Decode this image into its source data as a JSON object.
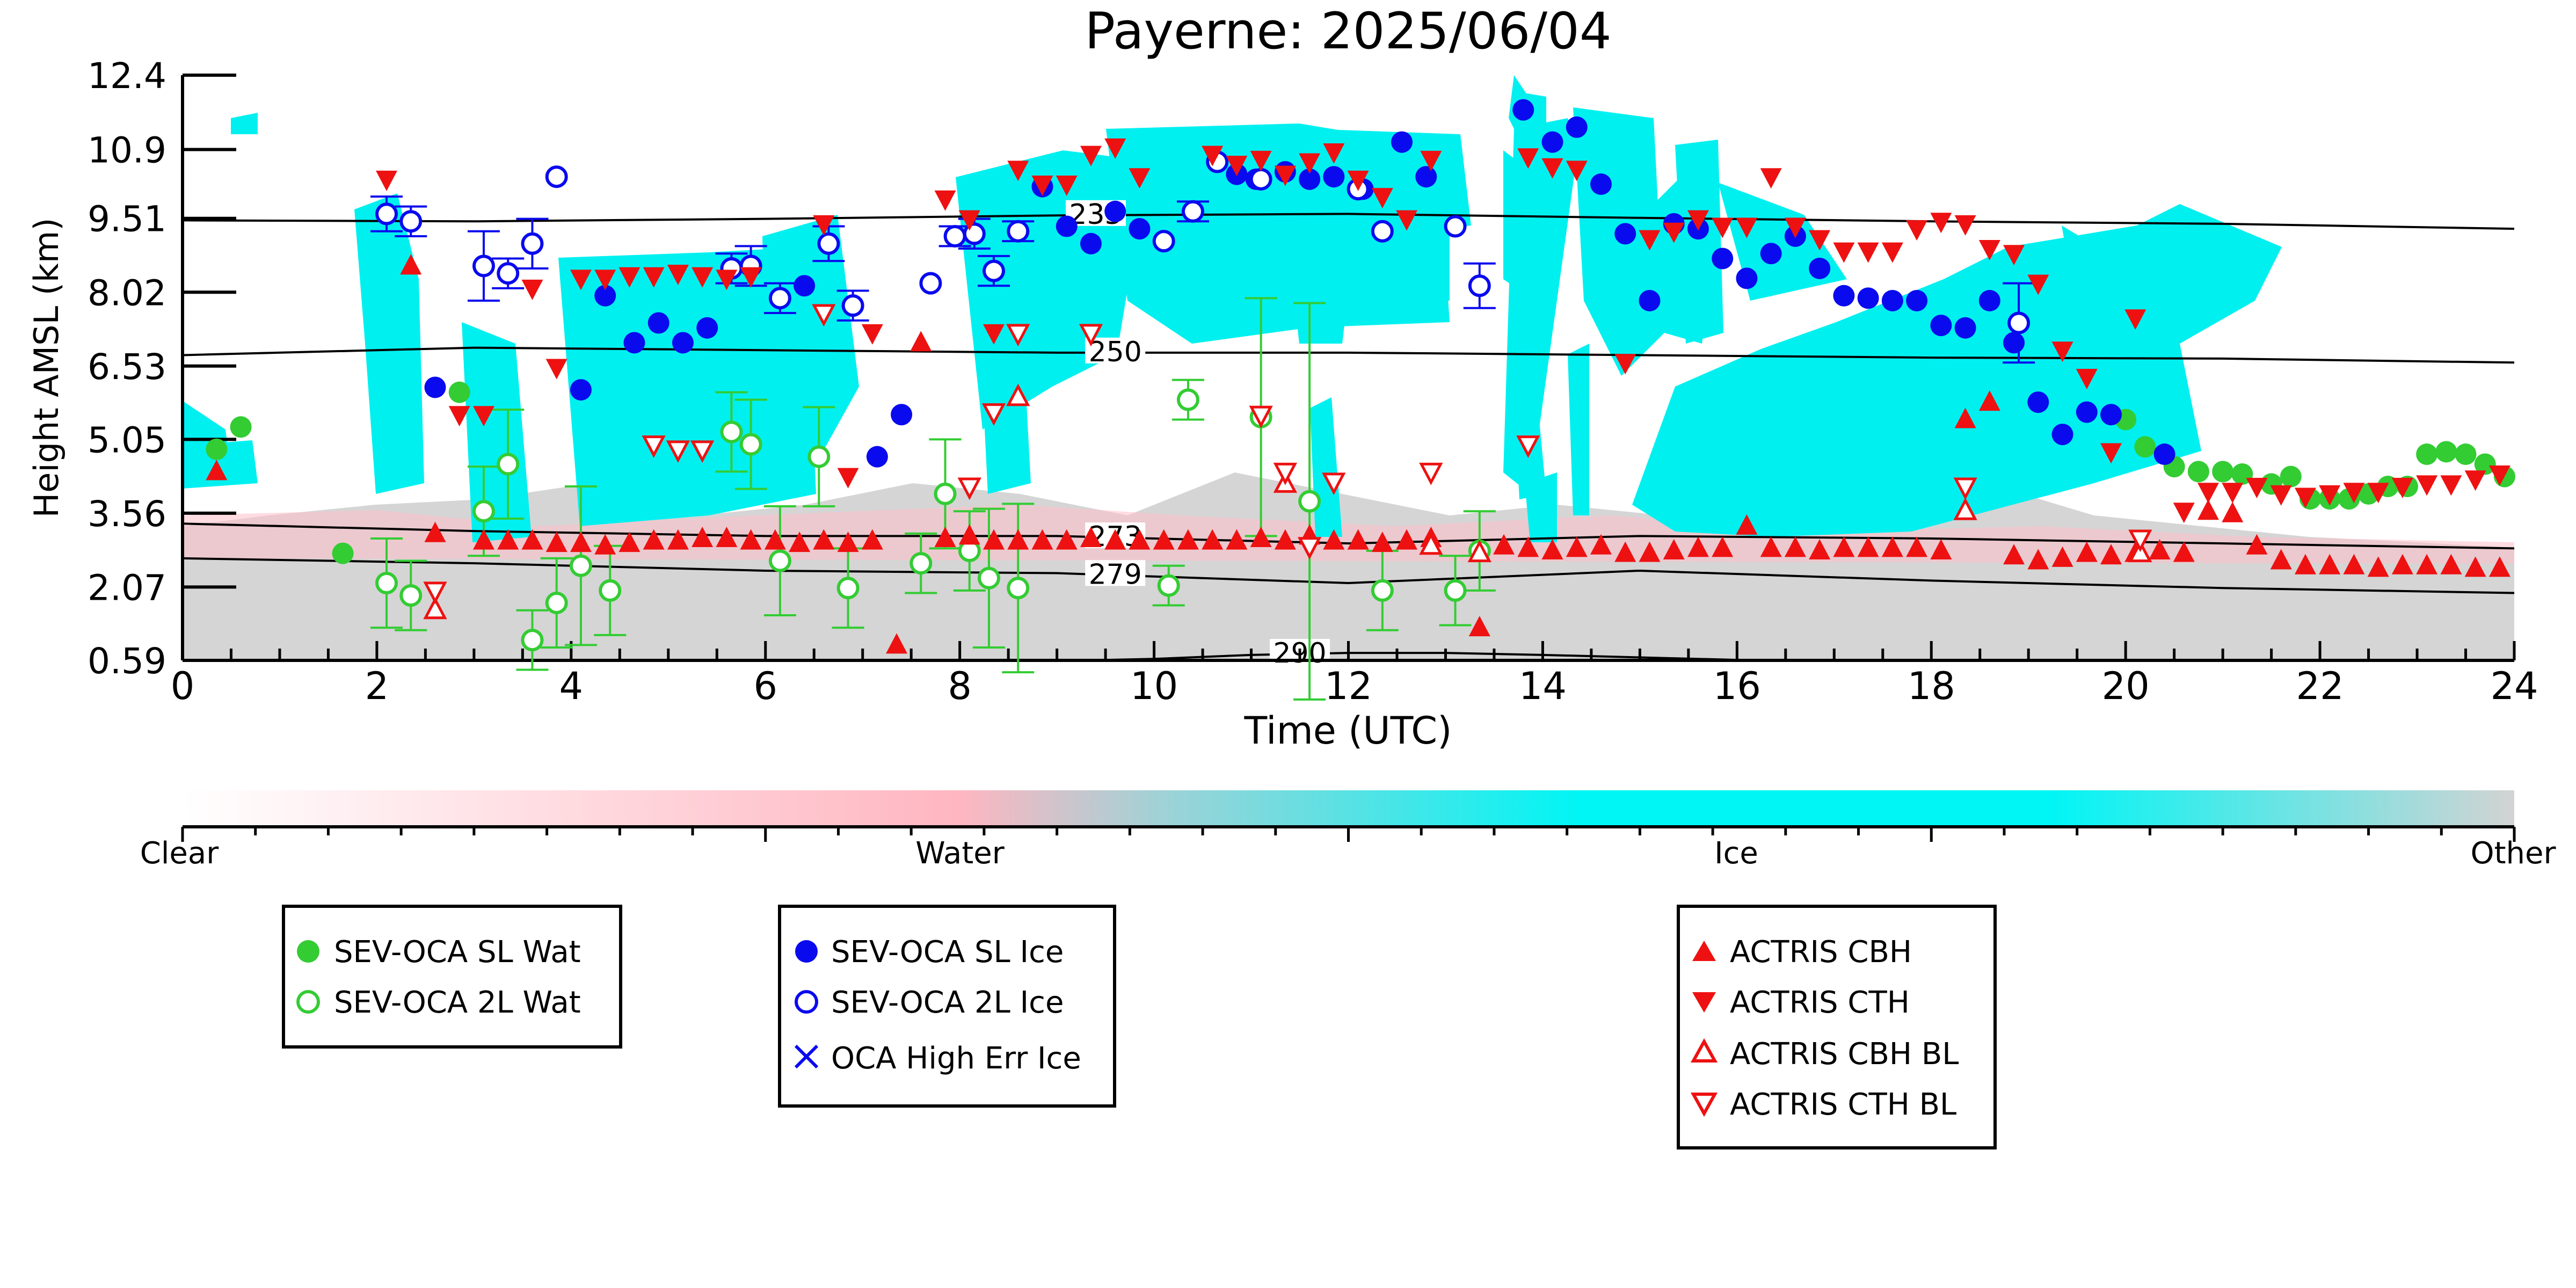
{
  "chart_data": {
    "type": "scatter",
    "title": "Payerne: 2025/06/04",
    "xlabel": "Time (UTC)",
    "ylabel": "Height AMSL (km)",
    "xlim": [
      0,
      24
    ],
    "ylim": [
      0.59,
      12.4
    ],
    "xticks": [
      "0",
      "2",
      "4",
      "6",
      "8",
      "10",
      "12",
      "14",
      "16",
      "18",
      "20",
      "22",
      "24"
    ],
    "xtick_values": [
      0,
      2,
      4,
      6,
      8,
      10,
      12,
      14,
      16,
      18,
      20,
      22,
      24
    ],
    "yticks": [
      "0.59",
      "2.07",
      "3.56",
      "5.05",
      "6.53",
      "8.02",
      "9.51",
      "10.9",
      "12.4"
    ],
    "ytick_values": [
      0.59,
      2.07,
      3.56,
      5.05,
      6.53,
      8.02,
      9.51,
      10.9,
      12.4
    ],
    "colorbar": {
      "labels": [
        "Clear",
        "Water",
        "Ice",
        "Other"
      ],
      "colors": [
        "#ffffff",
        "#ffb6c1",
        "#00f5f5",
        "#d3d3d3"
      ]
    },
    "isotherms": [
      {
        "label": "235",
        "label_x": 9.4,
        "x": [
          0,
          3,
          6,
          9,
          12,
          15,
          18,
          21,
          24
        ],
        "y": [
          9.47,
          9.45,
          9.5,
          9.57,
          9.6,
          9.52,
          9.45,
          9.4,
          9.3
        ]
      },
      {
        "label": "250",
        "label_x": 9.6,
        "x": [
          0,
          3,
          6,
          9,
          12,
          15,
          18,
          21,
          24
        ],
        "y": [
          6.75,
          6.9,
          6.85,
          6.8,
          6.8,
          6.75,
          6.7,
          6.68,
          6.6
        ]
      },
      {
        "label": "273",
        "label_x": 9.6,
        "x": [
          0,
          3,
          6,
          9,
          12,
          15,
          18,
          21,
          24
        ],
        "y": [
          3.35,
          3.2,
          3.1,
          3.1,
          2.95,
          3.1,
          3.05,
          2.95,
          2.85
        ]
      },
      {
        "label": "279",
        "label_x": 9.6,
        "x": [
          0,
          3,
          6,
          9,
          12,
          15,
          18,
          21,
          24
        ],
        "y": [
          2.65,
          2.55,
          2.4,
          2.35,
          2.15,
          2.4,
          2.2,
          2.05,
          1.95
        ]
      },
      {
        "label": "290",
        "label_x": 11.5,
        "x": [
          9.3,
          10,
          11,
          12,
          13,
          14,
          15,
          16,
          16.4
        ],
        "y": [
          0.59,
          0.62,
          0.7,
          0.74,
          0.74,
          0.7,
          0.65,
          0.6,
          0.59
        ]
      }
    ],
    "series": [
      {
        "name": "SEV-OCA SL Wat",
        "color": "#33cc33",
        "marker": "circle-filled",
        "x": [
          0.35,
          0.6,
          1.65,
          2.85,
          20.0,
          20.2,
          20.5,
          20.75,
          21.0,
          21.2,
          21.5,
          21.7,
          21.9,
          22.1,
          22.3,
          22.5,
          22.7,
          22.9,
          23.1,
          23.3,
          23.5,
          23.7,
          23.9
        ],
        "y": [
          4.85,
          5.3,
          2.75,
          6.0,
          5.45,
          4.9,
          4.5,
          4.4,
          4.4,
          4.35,
          4.15,
          4.3,
          3.85,
          3.85,
          3.85,
          3.95,
          4.1,
          4.1,
          4.75,
          4.8,
          4.75,
          4.55,
          4.3
        ]
      },
      {
        "name": "SEV-OCA 2L Wat",
        "color": "#33cc33",
        "marker": "circle-open",
        "x": [
          2.1,
          2.35,
          3.1,
          3.35,
          3.6,
          3.85,
          4.1,
          4.4,
          5.65,
          5.85,
          6.15,
          6.55,
          6.85,
          7.6,
          7.85,
          8.1,
          8.3,
          8.6,
          10.15,
          10.35,
          11.1,
          11.6,
          12.35,
          13.1,
          13.35
        ],
        "y": [
          2.15,
          1.9,
          3.6,
          4.55,
          1.0,
          1.75,
          2.5,
          2.0,
          5.2,
          4.95,
          2.6,
          4.7,
          2.05,
          2.55,
          3.95,
          2.8,
          2.25,
          2.05,
          2.1,
          5.85,
          5.5,
          3.8,
          2.0,
          2.0,
          2.8
        ],
        "err": [
          0.9,
          0.7,
          0.9,
          1.1,
          0.6,
          0.9,
          1.6,
          0.9,
          0.8,
          0.9,
          1.1,
          1.0,
          0.8,
          0.6,
          1.1,
          0.8,
          1.4,
          1.7,
          0.4,
          0.4,
          2.4,
          4.0,
          0.8,
          0.7,
          0.8
        ]
      },
      {
        "name": "SEV-OCA SL Ice",
        "color": "#0a0aee",
        "marker": "circle-filled",
        "x": [
          2.6,
          4.1,
          4.35,
          4.65,
          4.9,
          5.15,
          5.4,
          6.4,
          7.15,
          7.4,
          8.85,
          9.1,
          9.35,
          9.6,
          9.85,
          10.85,
          11.05,
          11.35,
          11.6,
          11.85,
          12.15,
          12.55,
          12.8,
          13.8,
          14.1,
          14.35,
          14.6,
          14.85,
          15.1,
          15.35,
          15.6,
          15.85,
          16.1,
          16.35,
          16.6,
          16.85,
          17.1,
          17.35,
          17.6,
          17.85,
          18.1,
          18.35,
          18.6,
          18.85,
          19.1,
          19.35,
          19.6,
          19.85,
          20.4
        ],
        "y": [
          6.1,
          6.05,
          7.95,
          7.0,
          7.4,
          7.0,
          7.3,
          8.15,
          4.7,
          5.55,
          10.15,
          9.35,
          9.0,
          9.65,
          9.3,
          10.4,
          10.3,
          10.45,
          10.3,
          10.35,
          10.1,
          11.05,
          10.35,
          11.7,
          11.05,
          11.35,
          10.2,
          9.2,
          7.85,
          9.4,
          9.3,
          8.7,
          8.3,
          8.8,
          9.15,
          8.5,
          7.95,
          7.9,
          7.85,
          7.85,
          7.35,
          7.3,
          7.85,
          7.0,
          5.8,
          5.15,
          5.6,
          5.55,
          4.75
        ]
      },
      {
        "name": "SEV-OCA 2L Ice",
        "color": "#0a0aee",
        "marker": "circle-open",
        "x": [
          2.1,
          2.35,
          3.1,
          3.35,
          3.6,
          3.85,
          5.65,
          5.85,
          6.15,
          6.65,
          6.9,
          7.7,
          7.95,
          8.15,
          8.35,
          8.6,
          10.1,
          10.4,
          10.65,
          11.1,
          12.1,
          12.35,
          13.1,
          13.35,
          18.9
        ],
        "y": [
          9.6,
          9.45,
          8.55,
          8.4,
          9.0,
          10.35,
          8.5,
          8.55,
          7.9,
          9.0,
          7.75,
          8.2,
          9.15,
          9.2,
          8.45,
          9.25,
          9.05,
          9.65,
          10.65,
          10.3,
          10.1,
          9.25,
          9.35,
          8.15,
          7.4
        ],
        "err": [
          0.35,
          0.3,
          0.7,
          0.3,
          0.5,
          0,
          0.3,
          0.4,
          0.3,
          0.35,
          0.3,
          0,
          0.2,
          0.3,
          0.3,
          0.2,
          0,
          0.2,
          0,
          0,
          0,
          0,
          0,
          0.45,
          0.8
        ]
      },
      {
        "name": "OCA High Err Ice",
        "color": "#0a0aee",
        "marker": "x",
        "x": [],
        "y": []
      },
      {
        "name": "ACTRIS CBH",
        "color": "#ee1111",
        "marker": "triangle-up-filled",
        "x": [
          0.35,
          2.35,
          2.6,
          3.1,
          3.35,
          3.6,
          3.85,
          4.1,
          4.35,
          4.6,
          4.85,
          5.1,
          5.35,
          5.6,
          5.85,
          6.1,
          6.35,
          6.6,
          6.85,
          7.1,
          7.35,
          7.6,
          7.85,
          8.1,
          8.35,
          8.6,
          8.85,
          9.1,
          9.35,
          9.6,
          9.85,
          10.1,
          10.35,
          10.6,
          10.85,
          11.1,
          11.35,
          11.6,
          11.85,
          12.1,
          12.35,
          12.6,
          12.85,
          13.35,
          13.6,
          13.85,
          14.1,
          14.35,
          14.6,
          14.85,
          15.1,
          15.35,
          15.6,
          15.85,
          16.1,
          16.35,
          16.6,
          16.85,
          17.1,
          17.35,
          17.6,
          17.85,
          18.1,
          18.35,
          18.6,
          18.85,
          19.1,
          19.35,
          19.6,
          19.85,
          20.1,
          20.35,
          20.6,
          20.85,
          21.1,
          21.35,
          21.6,
          21.85,
          22.1,
          22.35,
          22.6,
          22.85,
          23.1,
          23.35,
          23.6,
          23.85
        ],
        "y": [
          4.4,
          8.55,
          3.15,
          3.0,
          3.0,
          3.0,
          2.95,
          2.95,
          2.9,
          2.95,
          3.0,
          3.0,
          3.05,
          3.05,
          3.0,
          3.0,
          2.95,
          3.0,
          2.95,
          3.0,
          0.9,
          7.0,
          3.05,
          3.1,
          3.0,
          3.0,
          3.0,
          3.0,
          3.05,
          3.0,
          3.0,
          3.0,
          3.0,
          3.0,
          3.0,
          3.05,
          3.0,
          3.1,
          3.0,
          3.0,
          2.95,
          3.0,
          3.05,
          1.25,
          2.9,
          2.85,
          2.8,
          2.85,
          2.9,
          2.75,
          2.75,
          2.8,
          2.85,
          2.85,
          3.3,
          2.85,
          2.85,
          2.8,
          2.85,
          2.85,
          2.85,
          2.85,
          2.8,
          5.45,
          5.8,
          2.7,
          2.6,
          2.65,
          2.75,
          2.7,
          2.75,
          2.8,
          2.75,
          3.6,
          3.55,
          2.9,
          2.6,
          2.5,
          2.5,
          2.5,
          2.45,
          2.5,
          2.5,
          2.5,
          2.45,
          2.45
        ]
      },
      {
        "name": "ACTRIS CTH",
        "color": "#ee1111",
        "marker": "triangle-down-filled",
        "x": [
          2.1,
          2.85,
          3.1,
          3.6,
          3.85,
          4.1,
          4.35,
          4.6,
          4.85,
          5.1,
          5.35,
          5.6,
          5.85,
          6.6,
          6.85,
          7.1,
          7.85,
          8.1,
          8.35,
          8.6,
          8.85,
          9.1,
          9.35,
          9.6,
          9.85,
          10.6,
          10.85,
          11.1,
          11.35,
          11.6,
          11.85,
          12.1,
          12.35,
          12.6,
          12.85,
          13.85,
          14.1,
          14.35,
          14.85,
          15.1,
          15.35,
          15.6,
          15.85,
          16.1,
          16.35,
          16.6,
          16.85,
          17.1,
          17.35,
          17.6,
          17.85,
          18.1,
          18.35,
          18.6,
          18.85,
          19.1,
          19.35,
          19.6,
          19.85,
          20.1,
          20.6,
          20.85,
          21.1,
          21.35,
          21.6,
          21.85,
          22.1,
          22.35,
          22.6,
          22.85,
          23.1,
          23.35,
          23.6,
          23.85
        ],
        "y": [
          10.3,
          5.55,
          5.55,
          8.1,
          6.5,
          8.3,
          8.3,
          8.35,
          8.35,
          8.4,
          8.35,
          8.3,
          8.35,
          9.4,
          4.3,
          7.2,
          9.9,
          9.5,
          7.2,
          10.5,
          10.2,
          10.2,
          10.8,
          10.95,
          10.35,
          10.8,
          10.6,
          10.7,
          10.4,
          10.65,
          10.85,
          10.3,
          9.95,
          9.5,
          10.7,
          10.75,
          10.55,
          10.5,
          6.6,
          9.1,
          9.25,
          9.5,
          9.35,
          9.35,
          10.35,
          9.35,
          9.1,
          8.85,
          8.85,
          8.85,
          9.3,
          9.45,
          9.4,
          8.9,
          8.8,
          8.2,
          6.85,
          6.3,
          4.8,
          7.5,
          3.6,
          4.0,
          4.0,
          4.1,
          3.95,
          3.9,
          3.95,
          4.0,
          4.0,
          4.1,
          4.15,
          4.15,
          4.25,
          4.35
        ]
      },
      {
        "name": "ACTRIS CBH BL",
        "color": "#ee1111",
        "marker": "triangle-up-open",
        "x": [
          2.6,
          8.6,
          11.35,
          12.85,
          13.35,
          18.35,
          20.15
        ],
        "y": [
          1.6,
          5.9,
          4.15,
          2.9,
          2.75,
          3.6,
          2.75
        ]
      },
      {
        "name": "ACTRIS CTH BL",
        "color": "#ee1111",
        "marker": "triangle-down-open",
        "x": [
          2.6,
          4.85,
          5.1,
          5.35,
          6.6,
          8.1,
          8.35,
          8.6,
          9.35,
          11.1,
          11.35,
          11.6,
          11.85,
          12.85,
          13.85,
          18.35,
          20.15
        ],
        "y": [
          2.0,
          4.95,
          4.85,
          4.85,
          7.6,
          4.1,
          5.6,
          7.2,
          7.2,
          5.55,
          4.4,
          2.9,
          4.2,
          4.4,
          4.95,
          4.1,
          3.05
        ]
      }
    ]
  }
}
